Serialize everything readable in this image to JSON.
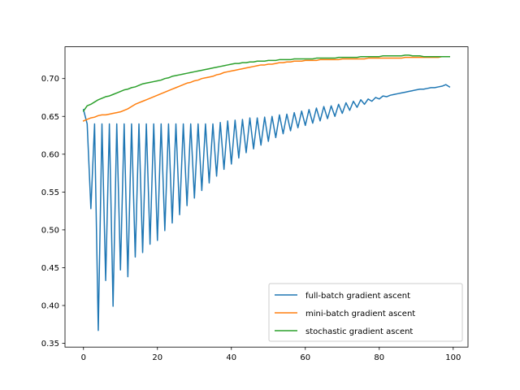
{
  "chart_data": {
    "type": "line",
    "title": "",
    "xlabel": "",
    "ylabel": "",
    "xlim": [
      -5,
      104
    ],
    "ylim": [
      0.345,
      0.742
    ],
    "xticks": [
      0,
      20,
      40,
      60,
      80,
      100
    ],
    "xtick_labels": [
      "0",
      "20",
      "40",
      "60",
      "80",
      "100"
    ],
    "yticks": [
      0.35,
      0.4,
      0.45,
      0.5,
      0.55,
      0.6,
      0.65,
      0.7
    ],
    "ytick_labels": [
      "0.35",
      "0.40",
      "0.45",
      "0.50",
      "0.55",
      "0.60",
      "0.65",
      "0.70"
    ],
    "grid": false,
    "legend_position": "lower-right",
    "series": [
      {
        "name": "full-batch gradient ascent",
        "color": "#1f77b4",
        "x": [
          0,
          1,
          2,
          3,
          4,
          5,
          6,
          7,
          8,
          9,
          10,
          11,
          12,
          13,
          14,
          15,
          16,
          17,
          18,
          19,
          20,
          21,
          22,
          23,
          24,
          25,
          26,
          27,
          28,
          29,
          30,
          31,
          32,
          33,
          34,
          35,
          36,
          37,
          38,
          39,
          40,
          41,
          42,
          43,
          44,
          45,
          46,
          47,
          48,
          49,
          50,
          51,
          52,
          53,
          54,
          55,
          56,
          57,
          58,
          59,
          60,
          61,
          62,
          63,
          64,
          65,
          66,
          67,
          68,
          69,
          70,
          71,
          72,
          73,
          74,
          75,
          76,
          77,
          78,
          79,
          80,
          81,
          82,
          83,
          84,
          85,
          86,
          87,
          88,
          89,
          90,
          91,
          92,
          93,
          94,
          95,
          96,
          97,
          98,
          99
        ],
        "values": [
          0.659,
          0.64,
          0.528,
          0.64,
          0.367,
          0.64,
          0.433,
          0.64,
          0.399,
          0.64,
          0.447,
          0.64,
          0.438,
          0.64,
          0.464,
          0.64,
          0.47,
          0.64,
          0.481,
          0.64,
          0.486,
          0.64,
          0.499,
          0.64,
          0.509,
          0.64,
          0.52,
          0.64,
          0.532,
          0.64,
          0.542,
          0.64,
          0.552,
          0.64,
          0.562,
          0.64,
          0.571,
          0.642,
          0.58,
          0.644,
          0.587,
          0.645,
          0.595,
          0.646,
          0.602,
          0.648,
          0.607,
          0.648,
          0.612,
          0.649,
          0.617,
          0.65,
          0.622,
          0.652,
          0.627,
          0.653,
          0.631,
          0.655,
          0.635,
          0.657,
          0.638,
          0.659,
          0.641,
          0.661,
          0.644,
          0.663,
          0.647,
          0.664,
          0.65,
          0.666,
          0.654,
          0.668,
          0.658,
          0.67,
          0.662,
          0.672,
          0.666,
          0.673,
          0.67,
          0.675,
          0.673,
          0.677,
          0.676,
          0.678,
          0.679,
          0.68,
          0.681,
          0.682,
          0.683,
          0.684,
          0.685,
          0.686,
          0.686,
          0.687,
          0.688,
          0.688,
          0.689,
          0.69,
          0.692,
          0.689
        ]
      },
      {
        "name": "mini-batch gradient ascent",
        "color": "#ff7f0e",
        "x": [
          0,
          1,
          2,
          3,
          4,
          5,
          6,
          7,
          8,
          9,
          10,
          11,
          12,
          13,
          14,
          15,
          16,
          17,
          18,
          19,
          20,
          21,
          22,
          23,
          24,
          25,
          26,
          27,
          28,
          29,
          30,
          31,
          32,
          33,
          34,
          35,
          36,
          37,
          38,
          39,
          40,
          41,
          42,
          43,
          44,
          45,
          46,
          47,
          48,
          49,
          50,
          51,
          52,
          53,
          54,
          55,
          56,
          57,
          58,
          59,
          60,
          61,
          62,
          63,
          64,
          65,
          66,
          67,
          68,
          69,
          70,
          71,
          72,
          73,
          74,
          75,
          76,
          77,
          78,
          79,
          80,
          81,
          82,
          83,
          84,
          85,
          86,
          87,
          88,
          89,
          90,
          91,
          92,
          93,
          94,
          95,
          96,
          97,
          98,
          99
        ],
        "values": [
          0.644,
          0.646,
          0.648,
          0.649,
          0.651,
          0.652,
          0.652,
          0.653,
          0.654,
          0.655,
          0.656,
          0.658,
          0.66,
          0.663,
          0.666,
          0.668,
          0.67,
          0.672,
          0.674,
          0.676,
          0.678,
          0.68,
          0.682,
          0.684,
          0.686,
          0.688,
          0.69,
          0.692,
          0.694,
          0.695,
          0.697,
          0.698,
          0.7,
          0.701,
          0.702,
          0.703,
          0.705,
          0.706,
          0.708,
          0.709,
          0.71,
          0.711,
          0.712,
          0.713,
          0.714,
          0.715,
          0.716,
          0.717,
          0.718,
          0.718,
          0.719,
          0.719,
          0.72,
          0.721,
          0.721,
          0.722,
          0.722,
          0.723,
          0.723,
          0.723,
          0.724,
          0.724,
          0.724,
          0.724,
          0.725,
          0.725,
          0.725,
          0.725,
          0.725,
          0.725,
          0.726,
          0.726,
          0.726,
          0.726,
          0.726,
          0.726,
          0.726,
          0.727,
          0.727,
          0.727,
          0.727,
          0.727,
          0.727,
          0.727,
          0.727,
          0.727,
          0.727,
          0.728,
          0.728,
          0.728,
          0.728,
          0.728,
          0.728,
          0.728,
          0.728,
          0.728,
          0.728,
          0.729,
          0.729,
          0.729
        ]
      },
      {
        "name": "stochastic gradient ascent",
        "color": "#2ca02c",
        "x": [
          0,
          1,
          2,
          3,
          4,
          5,
          6,
          7,
          8,
          9,
          10,
          11,
          12,
          13,
          14,
          15,
          16,
          17,
          18,
          19,
          20,
          21,
          22,
          23,
          24,
          25,
          26,
          27,
          28,
          29,
          30,
          31,
          32,
          33,
          34,
          35,
          36,
          37,
          38,
          39,
          40,
          41,
          42,
          43,
          44,
          45,
          46,
          47,
          48,
          49,
          50,
          51,
          52,
          53,
          54,
          55,
          56,
          57,
          58,
          59,
          60,
          61,
          62,
          63,
          64,
          65,
          66,
          67,
          68,
          69,
          70,
          71,
          72,
          73,
          74,
          75,
          76,
          77,
          78,
          79,
          80,
          81,
          82,
          83,
          84,
          85,
          86,
          87,
          88,
          89,
          90,
          91,
          92,
          93,
          94,
          95,
          96,
          97,
          98,
          99
        ],
        "values": [
          0.657,
          0.664,
          0.666,
          0.669,
          0.672,
          0.674,
          0.676,
          0.677,
          0.679,
          0.681,
          0.683,
          0.685,
          0.686,
          0.688,
          0.689,
          0.691,
          0.693,
          0.694,
          0.695,
          0.696,
          0.697,
          0.698,
          0.7,
          0.701,
          0.703,
          0.704,
          0.705,
          0.706,
          0.707,
          0.708,
          0.709,
          0.71,
          0.711,
          0.712,
          0.713,
          0.714,
          0.715,
          0.716,
          0.717,
          0.718,
          0.719,
          0.72,
          0.72,
          0.721,
          0.721,
          0.722,
          0.722,
          0.723,
          0.723,
          0.723,
          0.724,
          0.724,
          0.724,
          0.725,
          0.725,
          0.725,
          0.725,
          0.726,
          0.726,
          0.726,
          0.726,
          0.726,
          0.726,
          0.727,
          0.727,
          0.727,
          0.727,
          0.727,
          0.727,
          0.728,
          0.728,
          0.728,
          0.728,
          0.728,
          0.728,
          0.729,
          0.729,
          0.729,
          0.729,
          0.729,
          0.729,
          0.73,
          0.73,
          0.73,
          0.73,
          0.73,
          0.73,
          0.731,
          0.731,
          0.73,
          0.73,
          0.73,
          0.729,
          0.729,
          0.729,
          0.729,
          0.729,
          0.729,
          0.729,
          0.729
        ]
      }
    ]
  }
}
